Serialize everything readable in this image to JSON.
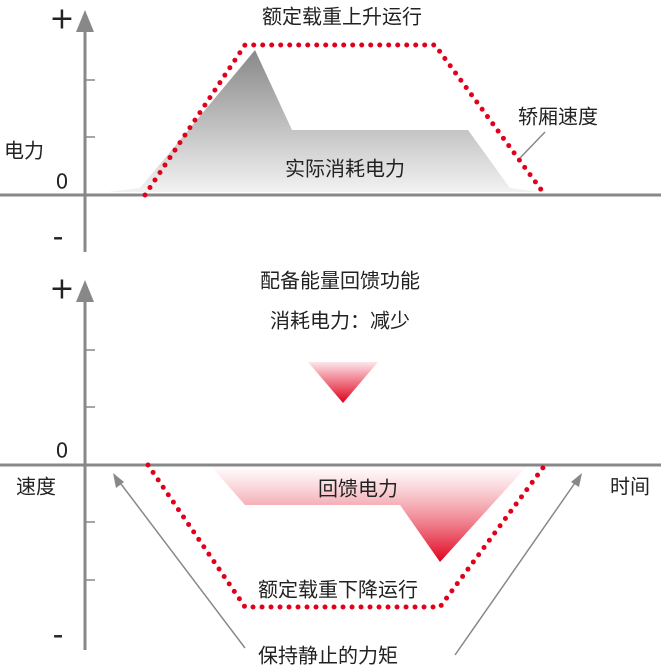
{
  "top_panel": {
    "plus": "+",
    "zero": "0",
    "minus": "-",
    "y_label": "电力",
    "title": "额定载重上升运行",
    "speed_label": "轿厢速度",
    "area_label": "实际消耗电力"
  },
  "bottom_panel": {
    "plus": "+",
    "zero": "0",
    "minus": "-",
    "y_label": "速度",
    "x_label": "时间",
    "title": "配备能量回馈功能",
    "subtitle": "消耗电力：减少",
    "area_label": "回馈电力",
    "run_label": "额定载重下降运行",
    "hold_label": "保持静止的力矩"
  }
}
